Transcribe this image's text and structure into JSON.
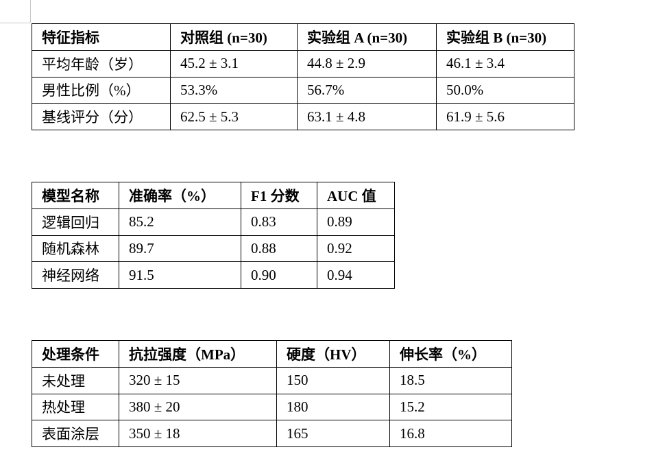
{
  "tables": [
    {
      "header": [
        "特征指标",
        "对照组  (n=30)",
        "实验组 A (n=30)",
        "实验组 B (n=30)"
      ],
      "rows": [
        [
          "平均年龄（岁）",
          "45.2 ± 3.1",
          "44.8 ± 2.9",
          "46.1 ± 3.4"
        ],
        [
          "男性比例（%）",
          "53.3%",
          "56.7%",
          "50.0%"
        ],
        [
          "基线评分（分）",
          "62.5 ± 5.3",
          "63.1 ± 4.8",
          "61.9 ± 5.6"
        ]
      ]
    },
    {
      "header": [
        "模型名称",
        "准确率（%）",
        "F1 分数",
        "AUC 值"
      ],
      "rows": [
        [
          "逻辑回归",
          "85.2",
          "0.83",
          "0.89"
        ],
        [
          "随机森林",
          "89.7",
          "0.88",
          "0.92"
        ],
        [
          "神经网络",
          "91.5",
          "0.90",
          "0.94"
        ]
      ]
    },
    {
      "header": [
        "处理条件",
        "抗拉强度（MPa）",
        "硬度（HV）",
        "伸长率（%）"
      ],
      "rows": [
        [
          "未处理",
          "320 ± 15",
          "150",
          "18.5"
        ],
        [
          "热处理",
          "380 ± 20",
          "180",
          "15.2"
        ],
        [
          "表面涂层",
          "350 ± 18",
          "165",
          "16.8"
        ]
      ]
    }
  ]
}
